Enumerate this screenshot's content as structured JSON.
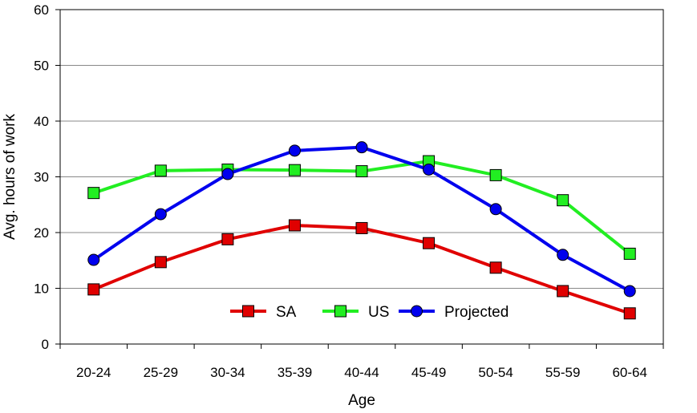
{
  "chart_data": {
    "type": "line",
    "title": "",
    "xlabel": "Age",
    "ylabel": "Avg. hours of work",
    "categories": [
      "20-24",
      "25-29",
      "30-34",
      "35-39",
      "40-44",
      "45-49",
      "50-54",
      "55-59",
      "60-64"
    ],
    "ylim": [
      0,
      60
    ],
    "yticks": [
      0,
      10,
      20,
      30,
      40,
      50,
      60
    ],
    "grid": true,
    "legend_position": "bottom-center",
    "series": [
      {
        "name": "SA",
        "color": "#e00000",
        "marker": "square",
        "values": [
          9.8,
          14.7,
          18.8,
          21.3,
          20.8,
          18.1,
          13.7,
          9.5,
          5.5
        ]
      },
      {
        "name": "US",
        "color": "#22ee22",
        "marker": "square",
        "values": [
          27.1,
          31.1,
          31.3,
          31.2,
          31.0,
          32.8,
          30.3,
          25.8,
          16.2
        ]
      },
      {
        "name": "Projected",
        "color": "#0000ee",
        "marker": "circle",
        "values": [
          15.1,
          23.3,
          30.5,
          34.7,
          35.3,
          31.3,
          24.2,
          16.0,
          9.5
        ]
      }
    ]
  }
}
